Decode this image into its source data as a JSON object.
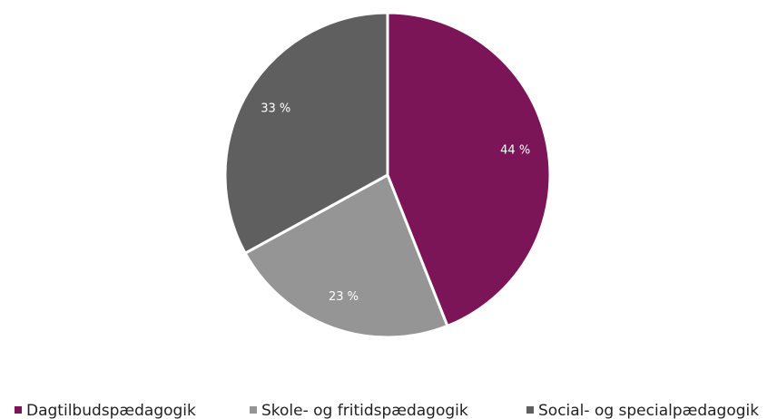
{
  "chart_data": {
    "type": "pie",
    "categories": [
      "Dagtilbudspædagogik",
      "Skole- og fritidspædagogik",
      "Social- og specialpædagogik"
    ],
    "values": [
      44,
      23,
      33
    ],
    "value_labels": [
      "44 %",
      "23 %",
      "33 %"
    ],
    "colors": [
      "#7b1557",
      "#959595",
      "#5f5f5f"
    ],
    "legend": "bottom"
  }
}
